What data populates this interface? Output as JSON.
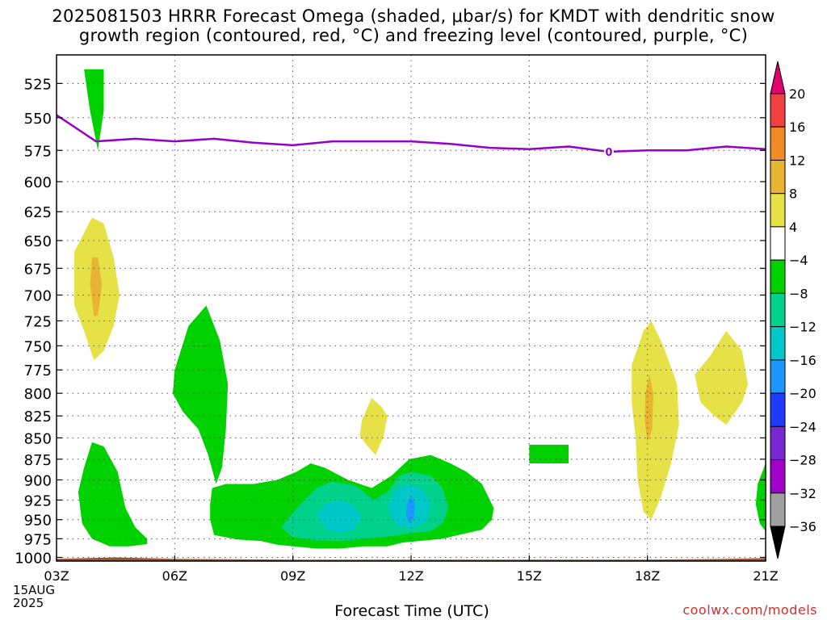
{
  "title": {
    "line1": "2025081503 HRRR Forecast Omega (shaded, μbar/s) for KMDT with dendritic snow",
    "line2": "growth region (contoured, red, °C) and freezing level (contoured, purple, °C)"
  },
  "xlabel": "Forecast Time (UTC)",
  "date_lines": [
    "15AUG",
    "2025"
  ],
  "credit": "coolwx.com/models",
  "chart_data": {
    "type": "heatmap",
    "x_ticks": [
      "03Z",
      "06Z",
      "09Z",
      "12Z",
      "15Z",
      "18Z",
      "21Z"
    ],
    "x_tick_hours": [
      3,
      6,
      9,
      12,
      15,
      18,
      21
    ],
    "xlim": [
      3,
      21
    ],
    "ylim_hpa": [
      1005,
      505
    ],
    "y_scale": "log-pressure",
    "y_ticks": [
      525,
      550,
      575,
      600,
      625,
      650,
      675,
      700,
      725,
      750,
      775,
      800,
      825,
      850,
      875,
      900,
      925,
      950,
      975,
      1000
    ],
    "grid": true,
    "colorbar": {
      "labels": [
        "20",
        "16",
        "12",
        "8",
        "4",
        "−4",
        "−8",
        "−12",
        "−16",
        "−20",
        "−24",
        "−28",
        "−32",
        "−36"
      ],
      "bins": [
        {
          "range": ">20",
          "color": "#e0006e"
        },
        {
          "range": "16 to 20",
          "color": "#f04040"
        },
        {
          "range": "12 to 16",
          "color": "#f08c28"
        },
        {
          "range": "8 to 12",
          "color": "#e8b432"
        },
        {
          "range": "4 to 8",
          "color": "#e6e146"
        },
        {
          "range": "-4 to 4",
          "color": "#ffffff"
        },
        {
          "range": "-8 to -4",
          "color": "#00d200"
        },
        {
          "range": "-12 to -8",
          "color": "#00d28c"
        },
        {
          "range": "-16 to -12",
          "color": "#00c8c8"
        },
        {
          "range": "-20 to -16",
          "color": "#1e96ff"
        },
        {
          "range": "-24 to -20",
          "color": "#1e3cff"
        },
        {
          "range": "-28 to -24",
          "color": "#7828d2"
        },
        {
          "range": "-32 to -28",
          "color": "#a000c8"
        },
        {
          "range": "-36 to -32",
          "color": "#a0a0a0"
        },
        {
          "range": "<-36",
          "color": "#000000"
        }
      ]
    },
    "freezing_level": {
      "label": "0",
      "color": "#9600c8",
      "points": [
        [
          3,
          548
        ],
        [
          4,
          568
        ],
        [
          5,
          566
        ],
        [
          6,
          568
        ],
        [
          7,
          566
        ],
        [
          8,
          569
        ],
        [
          9,
          571
        ],
        [
          10,
          568
        ],
        [
          11,
          568
        ],
        [
          12,
          568
        ],
        [
          13,
          570
        ],
        [
          14,
          573
        ],
        [
          15,
          574
        ],
        [
          16,
          572
        ],
        [
          17,
          576
        ],
        [
          18,
          575
        ],
        [
          19,
          575
        ],
        [
          20,
          572
        ],
        [
          21,
          574
        ]
      ]
    },
    "regions": [
      {
        "name": "green-top-4z",
        "color": "#00d200",
        "points": [
          [
            3.7,
            515
          ],
          [
            4.2,
            515
          ],
          [
            4.2,
            545
          ],
          [
            4.05,
            575
          ],
          [
            3.85,
            545
          ]
        ]
      },
      {
        "name": "yellow-680-4z",
        "color": "#e6e146",
        "points": [
          [
            3.45,
            660
          ],
          [
            3.9,
            630
          ],
          [
            4.2,
            635
          ],
          [
            4.45,
            665
          ],
          [
            4.6,
            700
          ],
          [
            4.45,
            730
          ],
          [
            4.2,
            755
          ],
          [
            3.95,
            765
          ],
          [
            3.7,
            735
          ],
          [
            3.45,
            710
          ]
        ]
      },
      {
        "name": "orange-680-4z",
        "color": "#e8b432",
        "points": [
          [
            3.9,
            665
          ],
          [
            4.05,
            665
          ],
          [
            4.15,
            690
          ],
          [
            4.05,
            720
          ],
          [
            3.95,
            720
          ],
          [
            3.85,
            690
          ]
        ]
      },
      {
        "name": "green-low-4z",
        "color": "#00d200",
        "points": [
          [
            3.55,
            915
          ],
          [
            3.7,
            885
          ],
          [
            3.9,
            855
          ],
          [
            4.2,
            860
          ],
          [
            4.55,
            890
          ],
          [
            4.75,
            935
          ],
          [
            5.0,
            960
          ],
          [
            5.3,
            975
          ],
          [
            5.3,
            982
          ],
          [
            4.85,
            985
          ],
          [
            4.35,
            985
          ],
          [
            3.9,
            975
          ],
          [
            3.65,
            955
          ]
        ]
      },
      {
        "name": "green-mid-6z",
        "color": "#00d200",
        "points": [
          [
            6.0,
            775
          ],
          [
            6.35,
            730
          ],
          [
            6.8,
            710
          ],
          [
            7.15,
            745
          ],
          [
            7.35,
            790
          ],
          [
            7.3,
            840
          ],
          [
            7.2,
            885
          ],
          [
            7.05,
            905
          ],
          [
            6.85,
            870
          ],
          [
            6.6,
            840
          ],
          [
            6.2,
            820
          ],
          [
            5.95,
            800
          ]
        ]
      },
      {
        "name": "green-blob-12z",
        "color": "#00d200",
        "points": [
          [
            6.95,
            910
          ],
          [
            7.3,
            905
          ],
          [
            8.0,
            905
          ],
          [
            8.6,
            900
          ],
          [
            9.1,
            890
          ],
          [
            9.45,
            880
          ],
          [
            9.8,
            885
          ],
          [
            10.4,
            900
          ],
          [
            11.0,
            910
          ],
          [
            11.5,
            895
          ],
          [
            11.95,
            875
          ],
          [
            12.5,
            870
          ],
          [
            13.0,
            880
          ],
          [
            13.4,
            890
          ],
          [
            13.8,
            905
          ],
          [
            14.1,
            935
          ],
          [
            14.05,
            950
          ],
          [
            13.8,
            963
          ],
          [
            13.2,
            970
          ],
          [
            12.8,
            975
          ],
          [
            12.4,
            977
          ],
          [
            11.8,
            980
          ],
          [
            11.4,
            985
          ],
          [
            10.8,
            985
          ],
          [
            10.2,
            988
          ],
          [
            9.6,
            988
          ],
          [
            9.0,
            985
          ],
          [
            8.6,
            983
          ],
          [
            8.2,
            978
          ],
          [
            7.6,
            976
          ],
          [
            7.3,
            973
          ],
          [
            7.0,
            970
          ],
          [
            6.9,
            950
          ],
          [
            6.9,
            930
          ]
        ]
      },
      {
        "name": "teal-blob-12z",
        "color": "#00d28c",
        "points": [
          [
            8.7,
            960
          ],
          [
            9.1,
            935
          ],
          [
            9.6,
            910
          ],
          [
            10.0,
            902
          ],
          [
            10.6,
            907
          ],
          [
            11.05,
            925
          ],
          [
            11.4,
            915
          ],
          [
            11.7,
            895
          ],
          [
            12.0,
            890
          ],
          [
            12.5,
            895
          ],
          [
            12.8,
            910
          ],
          [
            12.95,
            935
          ],
          [
            12.8,
            955
          ],
          [
            12.5,
            965
          ],
          [
            12.0,
            968
          ],
          [
            11.4,
            972
          ],
          [
            10.8,
            975
          ],
          [
            10.2,
            978
          ],
          [
            9.6,
            977
          ],
          [
            9.0,
            973
          ]
        ]
      },
      {
        "name": "cyan-1-10z",
        "color": "#00c8c8",
        "points": [
          [
            9.6,
            943
          ],
          [
            9.85,
            930
          ],
          [
            10.2,
            925
          ],
          [
            10.55,
            932
          ],
          [
            10.75,
            947
          ],
          [
            10.55,
            962
          ],
          [
            10.2,
            968
          ],
          [
            9.85,
            962
          ]
        ]
      },
      {
        "name": "cyan-2-12z",
        "color": "#00c8c8",
        "points": [
          [
            11.4,
            935
          ],
          [
            11.6,
            912
          ],
          [
            11.95,
            905
          ],
          [
            12.3,
            912
          ],
          [
            12.5,
            930
          ],
          [
            12.4,
            952
          ],
          [
            12.0,
            962
          ],
          [
            11.6,
            957
          ]
        ]
      },
      {
        "name": "blue-12z",
        "color": "#1e96ff",
        "points": [
          [
            11.9,
            930
          ],
          [
            12.0,
            920
          ],
          [
            12.1,
            930
          ],
          [
            12.07,
            948
          ],
          [
            11.95,
            955
          ],
          [
            11.88,
            945
          ]
        ]
      },
      {
        "name": "yellow-825-11z",
        "color": "#e6e146",
        "points": [
          [
            10.75,
            830
          ],
          [
            11.0,
            805
          ],
          [
            11.25,
            815
          ],
          [
            11.4,
            825
          ],
          [
            11.3,
            848
          ],
          [
            11.1,
            870
          ],
          [
            10.9,
            860
          ],
          [
            10.7,
            848
          ]
        ]
      },
      {
        "name": "green-870-15z",
        "color": "#00d200",
        "points": [
          [
            15.0,
            858
          ],
          [
            16.0,
            858
          ],
          [
            16.0,
            880
          ],
          [
            15.0,
            880
          ]
        ]
      },
      {
        "name": "yellow-800-18z",
        "color": "#e6e146",
        "points": [
          [
            17.6,
            770
          ],
          [
            17.9,
            735
          ],
          [
            18.1,
            725
          ],
          [
            18.4,
            750
          ],
          [
            18.75,
            790
          ],
          [
            18.8,
            835
          ],
          [
            18.6,
            880
          ],
          [
            18.35,
            920
          ],
          [
            18.1,
            950
          ],
          [
            17.9,
            940
          ],
          [
            17.75,
            900
          ],
          [
            17.7,
            850
          ],
          [
            17.6,
            810
          ]
        ]
      },
      {
        "name": "orange-800-18z",
        "color": "#e8b432",
        "points": [
          [
            17.95,
            800
          ],
          [
            18.05,
            780
          ],
          [
            18.15,
            800
          ],
          [
            18.12,
            840
          ],
          [
            18.0,
            855
          ],
          [
            17.93,
            830
          ]
        ]
      },
      {
        "name": "yellow-790-20z",
        "color": "#e6e146",
        "points": [
          [
            19.2,
            780
          ],
          [
            19.6,
            760
          ],
          [
            20.0,
            735
          ],
          [
            20.4,
            755
          ],
          [
            20.55,
            790
          ],
          [
            20.4,
            810
          ],
          [
            20.0,
            835
          ],
          [
            19.7,
            825
          ],
          [
            19.35,
            810
          ]
        ]
      },
      {
        "name": "green-930-21z",
        "color": "#00d200",
        "points": [
          [
            21.0,
            880
          ],
          [
            20.8,
            905
          ],
          [
            20.75,
            930
          ],
          [
            20.85,
            955
          ],
          [
            21.0,
            965
          ]
        ]
      }
    ],
    "terrain": {
      "color": "#a0522d",
      "points": [
        [
          3,
          1002
        ],
        [
          4.5,
          1000
        ],
        [
          6,
          1002
        ],
        [
          9,
          1003
        ],
        [
          12,
          1003
        ],
        [
          15,
          1003
        ],
        [
          18,
          1003
        ],
        [
          20,
          1002
        ],
        [
          21,
          1001
        ]
      ]
    }
  }
}
